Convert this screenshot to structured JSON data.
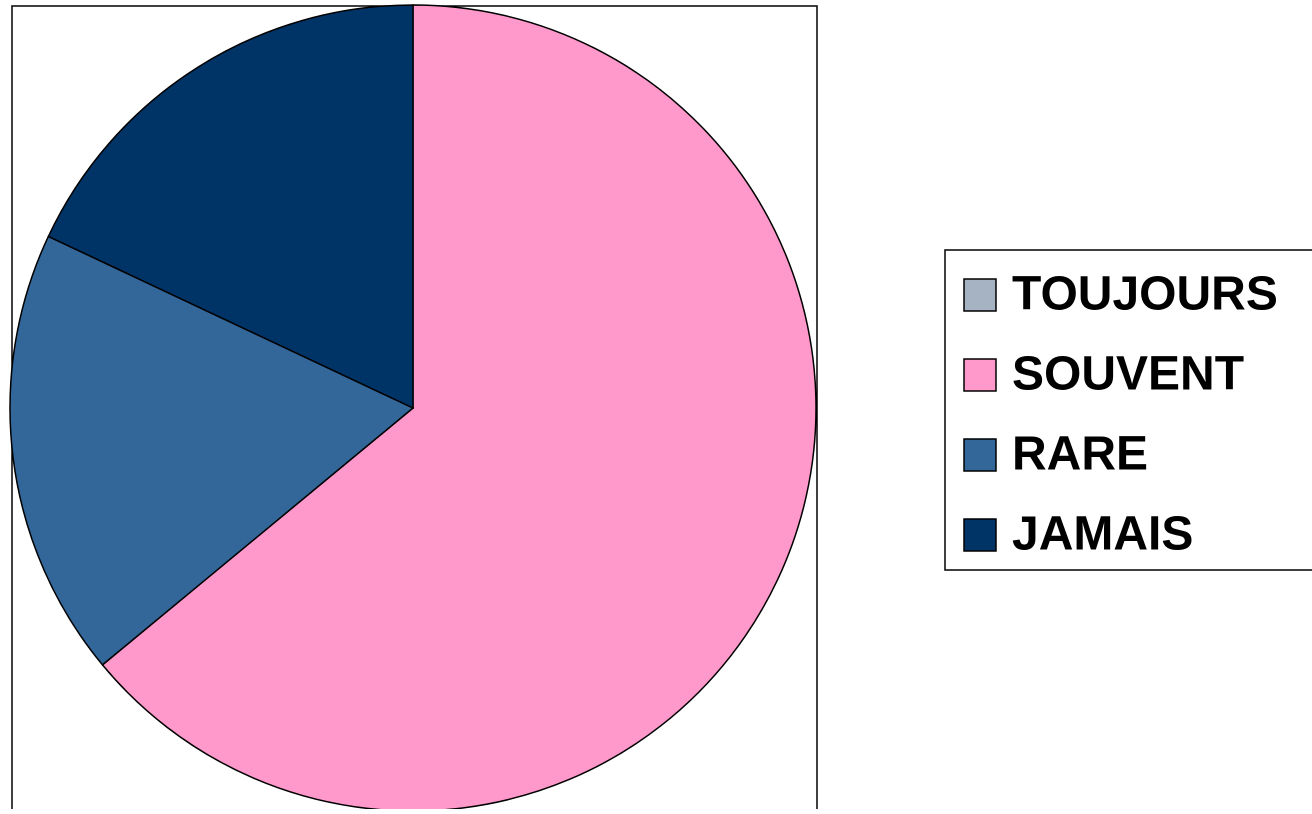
{
  "chart_data": {
    "type": "pie",
    "categories": [
      "TOUJOURS",
      "SOUVENT",
      "RARE",
      "JAMAIS"
    ],
    "values": [
      0,
      64,
      18,
      18
    ],
    "colors": [
      "#a6b3c2",
      "#ff99cc",
      "#336699",
      "#003366"
    ]
  }
}
